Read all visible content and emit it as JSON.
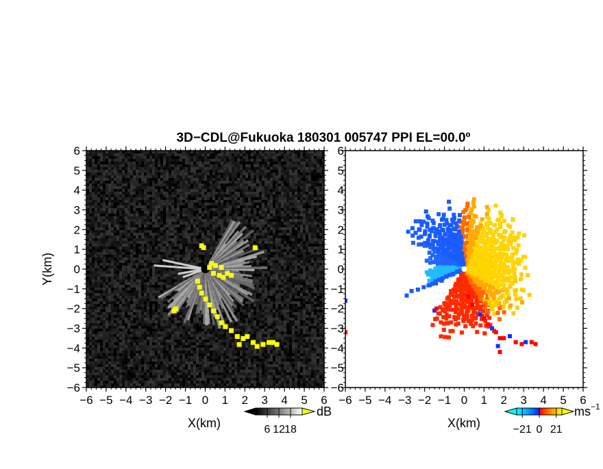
{
  "figure": {
    "title": "3D−CDL@Fukuoka 180301 005747 PPI EL=00.0º"
  },
  "chart_data": [
    {
      "type": "heatmap",
      "panel": "left",
      "variable": "reflectivity",
      "xlabel": "X(km)",
      "ylabel": "Y(km)",
      "xlim": [
        -6,
        6
      ],
      "ylim": [
        -6,
        6
      ],
      "x_ticks": [
        "−6",
        "−5",
        "−4",
        "−3",
        "−2",
        "−1",
        "0",
        "1",
        "2",
        "3",
        "4",
        "5",
        "6"
      ],
      "y_ticks": [
        "−6",
        "−5",
        "−4",
        "−3",
        "−2",
        "−1",
        "0",
        "1",
        "2",
        "3",
        "4",
        "5",
        "6"
      ],
      "colormap": "grayscale",
      "background_color": "#000000",
      "highlight_color": "#ffff00",
      "colorbar": {
        "ticks": [
          6,
          12,
          18
        ],
        "tick_labels": [
          "6",
          "12",
          "18"
        ],
        "unit": "dB",
        "extend": "both",
        "low_color": "#000000",
        "high_color": "#ffff00"
      }
    },
    {
      "type": "heatmap",
      "panel": "right",
      "variable": "doppler_velocity",
      "xlabel": "X(km)",
      "ylabel": "",
      "xlim": [
        -6,
        6
      ],
      "ylim": [
        -6,
        6
      ],
      "x_ticks": [
        "−6",
        "−5",
        "−4",
        "−3",
        "−2",
        "−1",
        "0",
        "1",
        "2",
        "3",
        "4",
        "5",
        "6"
      ],
      "y_ticks": [
        "−6",
        "−5",
        "−4",
        "−3",
        "−2",
        "−1",
        "0",
        "1",
        "2",
        "3",
        "4",
        "5",
        "6"
      ],
      "colormap": [
        "#00ffff",
        "#0050ff",
        "#ff0000",
        "#ff8c00",
        "#ffff00"
      ],
      "background_color": "#ffffff",
      "colorbar": {
        "ticks": [
          -21,
          0,
          21
        ],
        "tick_labels": [
          "−21",
          "0",
          "21"
        ],
        "unit": "ms",
        "unit_superscript": "−1",
        "extend": "both"
      }
    }
  ]
}
